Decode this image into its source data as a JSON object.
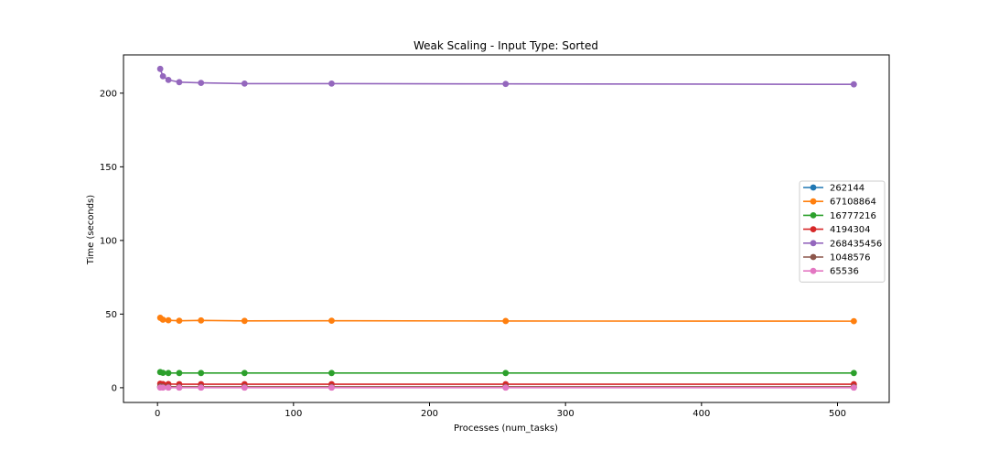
{
  "chart_data": {
    "type": "line",
    "title": "Weak Scaling - Input Type: Sorted",
    "xlabel": "Processes (num_tasks)",
    "ylabel": "Time (seconds)",
    "xlim": [
      -25,
      538
    ],
    "ylim": [
      -10,
      226
    ],
    "xticks": [
      0,
      100,
      200,
      300,
      400,
      500
    ],
    "yticks": [
      0,
      50,
      100,
      150,
      200
    ],
    "x": [
      2,
      4,
      8,
      16,
      32,
      64,
      128,
      256,
      512
    ],
    "grid": false,
    "legend_position": "center-right",
    "series": [
      {
        "name": "262144",
        "color": "#1f77b4",
        "values": [
          0.35,
          0.25,
          0.2,
          0.18,
          0.17,
          0.16,
          0.16,
          0.16,
          0.16
        ]
      },
      {
        "name": "67108864",
        "color": "#ff7f0e",
        "values": [
          47.5,
          46.2,
          45.8,
          45.5,
          45.7,
          45.4,
          45.5,
          45.3,
          45.2
        ]
      },
      {
        "name": "16777216",
        "color": "#2ca02c",
        "values": [
          10.6,
          10.1,
          10.0,
          10.0,
          10.0,
          10.0,
          10.0,
          10.0,
          10.0
        ]
      },
      {
        "name": "4194304",
        "color": "#d62728",
        "values": [
          2.7,
          2.5,
          2.5,
          2.4,
          2.4,
          2.4,
          2.4,
          2.4,
          2.4
        ]
      },
      {
        "name": "268435456",
        "color": "#9467bd",
        "values": [
          216.5,
          211.5,
          209.0,
          207.5,
          207.0,
          206.5,
          206.5,
          206.3,
          206.0
        ]
      },
      {
        "name": "1048576",
        "color": "#8c564b",
        "values": [
          0.9,
          0.7,
          0.65,
          0.62,
          0.6,
          0.6,
          0.6,
          0.6,
          0.6
        ]
      },
      {
        "name": "65536",
        "color": "#e377c2",
        "values": [
          0.1,
          0.08,
          0.07,
          0.07,
          0.07,
          0.07,
          0.07,
          0.07,
          0.07
        ]
      }
    ]
  }
}
